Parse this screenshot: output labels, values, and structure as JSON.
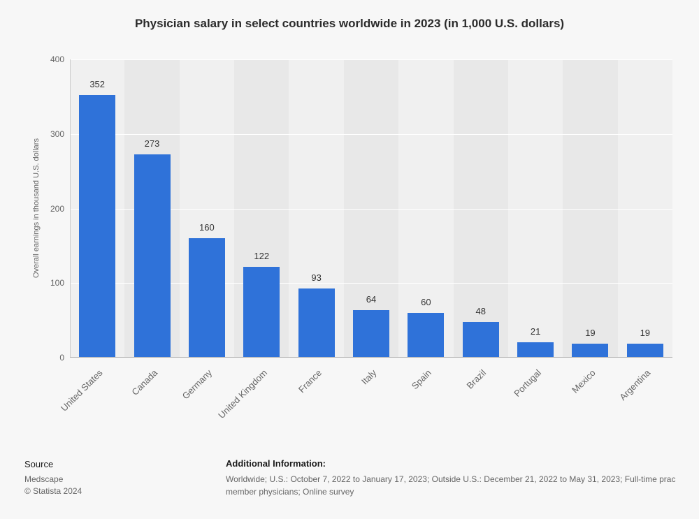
{
  "header": {
    "title": "Physician salary in select countries worldwide in 2023 (in 1,000 U.S. dollars)"
  },
  "chart_data": {
    "type": "bar",
    "title": "Physician salary in select countries worldwide in 2023 (in 1,000 U.S. dollars)",
    "categories": [
      "United States",
      "Canada",
      "Germany",
      "United Kingdom",
      "France",
      "Italy",
      "Spain",
      "Brazil",
      "Portugal",
      "Mexico",
      "Argentina"
    ],
    "values": [
      352,
      273,
      160,
      122,
      93,
      64,
      60,
      48,
      21,
      19,
      19
    ],
    "xlabel": "",
    "ylabel": "Overall earnings in thousand U.S. dollars",
    "ylim": [
      0,
      400
    ],
    "yticks": [
      0,
      100,
      200,
      300,
      400
    ],
    "grid": true,
    "legend_position": "none",
    "bar_color": "#2f72d9",
    "band_colors": [
      "#f0f0f0",
      "#e8e8e8"
    ]
  },
  "footer": {
    "source_label": "Source",
    "source_name": "Medscape",
    "copyright": "© Statista 2024",
    "additional_label": "Additional Information:",
    "additional_line1": "Worldwide; U.S.: October 7, 2022 to January 17, 2023; Outside U.S.: December 21, 2022 to May 31, 2023; Full-time prac",
    "additional_line2": "member physicians; Online survey"
  }
}
